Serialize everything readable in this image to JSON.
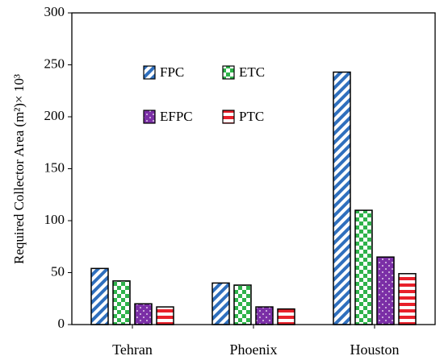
{
  "chart_data": {
    "type": "bar",
    "categories": [
      "Tehran",
      "Phoenix",
      "Houston"
    ],
    "series": [
      {
        "name": "FPC",
        "values": [
          54,
          40,
          243
        ],
        "color": "#2f6fbd",
        "pattern": "diagonal-stripes"
      },
      {
        "name": "ETC",
        "values": [
          42,
          38,
          110
        ],
        "color": "#2eb34a",
        "pattern": "checkerboard"
      },
      {
        "name": "EFPC",
        "values": [
          20,
          17,
          65
        ],
        "color": "#7b2fa6",
        "pattern": "dots"
      },
      {
        "name": "PTC",
        "values": [
          17,
          15,
          49
        ],
        "color": "#e8202a",
        "pattern": "horizontal-stripes"
      }
    ],
    "ylabel": "Required Collector Area (m²)× 10³",
    "xlabel": "",
    "title": "",
    "ylim": [
      0,
      300
    ],
    "yticks": [
      "0",
      "50",
      "100",
      "150",
      "200",
      "250",
      "300"
    ],
    "grid": false,
    "legend_position": "upper-left-inside"
  }
}
